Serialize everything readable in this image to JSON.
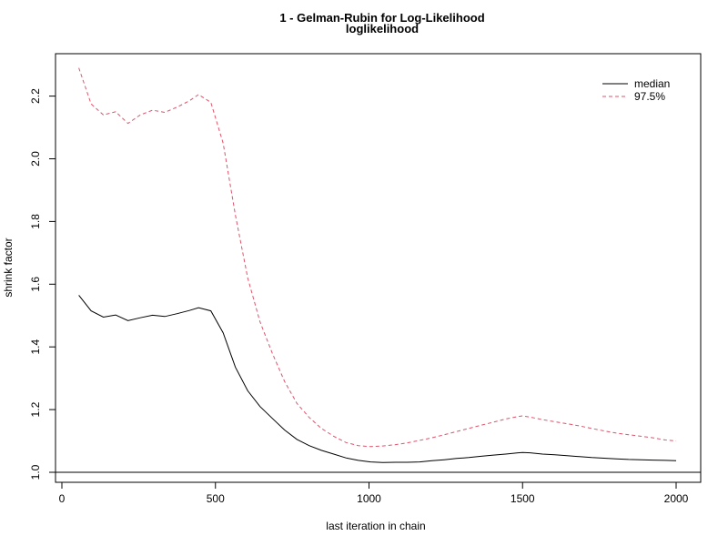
{
  "chart_data": {
    "type": "line",
    "title": "1 - Gelman-Rubin for Log-Likelihood",
    "subtitle": "loglikelihood",
    "xlabel": "last iteration in chain",
    "ylabel": "shrink factor",
    "xlim": [
      0,
      2000
    ],
    "ylim": [
      1.0,
      2.3
    ],
    "x_ticks": [
      0,
      500,
      1000,
      1500,
      2000
    ],
    "x_tick_labels": [
      "0",
      "500",
      "1000",
      "1500",
      "2000"
    ],
    "y_ticks": [
      1.0,
      1.2,
      1.4,
      1.6,
      1.8,
      2.0,
      2.2
    ],
    "y_tick_labels": [
      "1.0",
      "1.2",
      "1.4",
      "1.6",
      "1.8",
      "2.0",
      "2.2"
    ],
    "reference_line_y": 1.0,
    "legend_position": "top-right",
    "grid": false,
    "x": [
      55,
      95,
      135,
      175,
      215,
      255,
      295,
      335,
      375,
      415,
      445,
      485,
      525,
      565,
      605,
      645,
      685,
      725,
      765,
      805,
      845,
      885,
      925,
      965,
      1005,
      1045,
      1085,
      1125,
      1165,
      1205,
      1245,
      1285,
      1325,
      1365,
      1405,
      1445,
      1485,
      1500,
      1525,
      1565,
      1605,
      1645,
      1685,
      1725,
      1765,
      1805,
      1845,
      1885,
      1925,
      1965,
      2000
    ],
    "series": [
      {
        "name": "median",
        "color": "#000000",
        "dash": "solid",
        "values": [
          1.565,
          1.515,
          1.495,
          1.502,
          1.484,
          1.493,
          1.501,
          1.497,
          1.506,
          1.516,
          1.525,
          1.515,
          1.445,
          1.335,
          1.26,
          1.21,
          1.172,
          1.135,
          1.105,
          1.085,
          1.07,
          1.058,
          1.046,
          1.038,
          1.033,
          1.031,
          1.032,
          1.032,
          1.033,
          1.037,
          1.04,
          1.044,
          1.047,
          1.051,
          1.055,
          1.058,
          1.062,
          1.063,
          1.062,
          1.058,
          1.056,
          1.053,
          1.05,
          1.047,
          1.045,
          1.043,
          1.041,
          1.04,
          1.039,
          1.038,
          1.037
        ]
      },
      {
        "name": "97.5%",
        "color": "#df536b",
        "dash": "dashed",
        "values": [
          2.29,
          2.175,
          2.14,
          2.15,
          2.113,
          2.14,
          2.155,
          2.148,
          2.165,
          2.185,
          2.205,
          2.18,
          2.05,
          1.82,
          1.62,
          1.48,
          1.38,
          1.29,
          1.22,
          1.175,
          1.14,
          1.115,
          1.095,
          1.085,
          1.082,
          1.084,
          1.088,
          1.094,
          1.102,
          1.11,
          1.12,
          1.13,
          1.14,
          1.15,
          1.16,
          1.17,
          1.178,
          1.18,
          1.176,
          1.168,
          1.161,
          1.155,
          1.148,
          1.14,
          1.132,
          1.125,
          1.12,
          1.115,
          1.11,
          1.103,
          1.1
        ]
      }
    ]
  }
}
